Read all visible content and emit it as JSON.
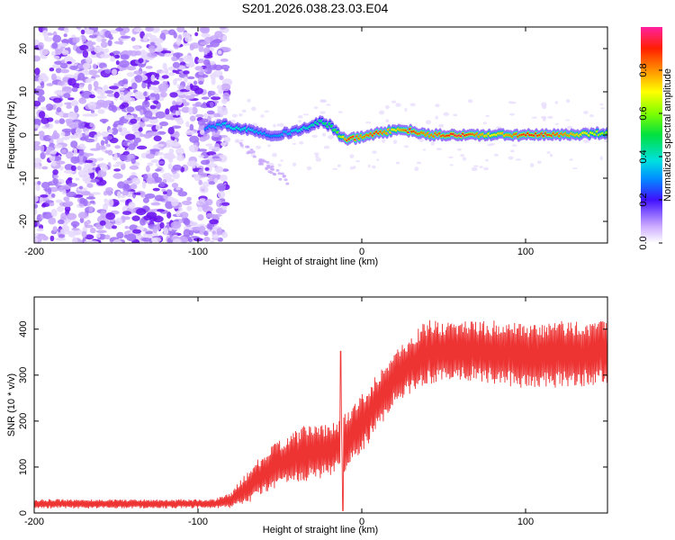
{
  "title": "S201.2026.038.23.03.E04",
  "chart_data": [
    {
      "type": "heatmap",
      "xlabel": "Height of straight line (km)",
      "ylabel": "Frequency (Hz)",
      "xlim": [
        -200,
        150
      ],
      "ylim": [
        -25,
        25
      ],
      "xticks": [
        -200,
        -100,
        0,
        100
      ],
      "yticks": [
        20,
        10,
        0,
        -10,
        -20
      ],
      "noise_region_x": [
        -200,
        -90
      ],
      "signal_trace": {
        "x": [
          -95,
          -85,
          -75,
          -65,
          -55,
          -45,
          -35,
          -25,
          -18,
          -13,
          -8,
          0,
          10,
          20,
          30,
          40,
          60,
          80,
          100,
          120,
          150
        ],
        "freq": [
          1.5,
          2.5,
          1.5,
          1.0,
          0.0,
          0.5,
          1.5,
          3.0,
          2.0,
          -0.5,
          -1.0,
          -0.5,
          0.5,
          1.0,
          1.0,
          0.0,
          0.0,
          0.0,
          0.0,
          0.0,
          0.5
        ],
        "amplitude": [
          0.3,
          0.35,
          0.4,
          0.35,
          0.3,
          0.35,
          0.4,
          0.45,
          0.5,
          0.6,
          0.9,
          0.8,
          0.9,
          0.7,
          0.9,
          0.8,
          0.95,
          0.7,
          0.9,
          0.85,
          0.6
        ]
      },
      "colorbar": {
        "label": "Normalized spectral amplitude",
        "range": [
          0.0,
          1.0
        ],
        "ticks": [
          0.0,
          0.2,
          0.4,
          0.6,
          0.8
        ]
      }
    },
    {
      "type": "line",
      "xlabel": "Height of straight line (km)",
      "ylabel": "SNR (10 * v/v)",
      "xlim": [
        -200,
        150
      ],
      "ylim": [
        0,
        470
      ],
      "xticks": [
        -200,
        -100,
        0,
        100
      ],
      "yticks": [
        0,
        100,
        200,
        300,
        400
      ],
      "series": [
        {
          "name": "SNR",
          "color": "#ee3333",
          "envelope_x": [
            -200,
            -160,
            -120,
            -90,
            -80,
            -70,
            -60,
            -50,
            -40,
            -30,
            -20,
            -10,
            0,
            10,
            20,
            30,
            40,
            60,
            80,
            100,
            120,
            150
          ],
          "envelope_lo": [
            10,
            10,
            10,
            10,
            10,
            20,
            40,
            60,
            60,
            70,
            80,
            90,
            130,
            180,
            240,
            260,
            280,
            290,
            280,
            270,
            270,
            280
          ],
          "envelope_hi": [
            30,
            30,
            30,
            30,
            45,
            90,
            130,
            160,
            180,
            200,
            190,
            220,
            260,
            310,
            350,
            390,
            420,
            420,
            420,
            410,
            420,
            420
          ],
          "spike": {
            "x": -13,
            "y": 352
          }
        }
      ]
    }
  ],
  "colors": {
    "noise": "#7a1cf0",
    "line": "#ee3333"
  }
}
